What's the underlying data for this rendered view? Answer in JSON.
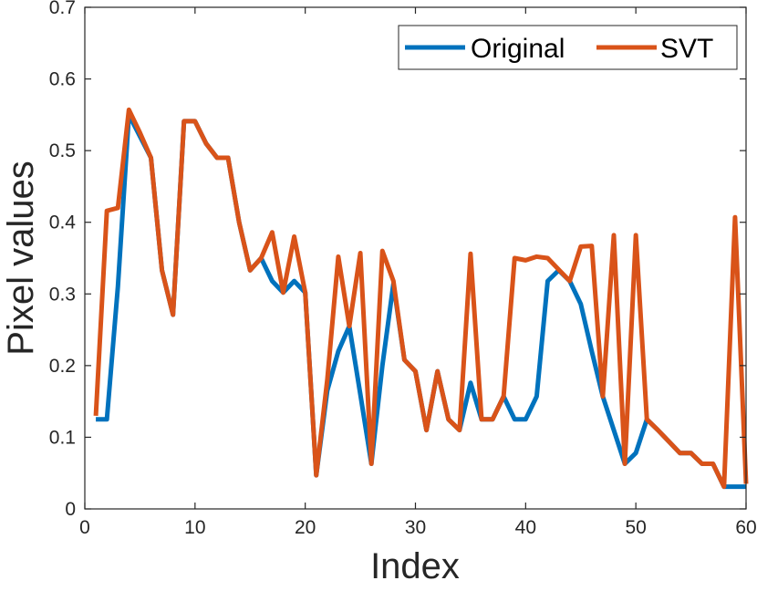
{
  "chart_data": {
    "type": "line",
    "xlabel": "Index",
    "ylabel": "Pixel values",
    "xlim": [
      0,
      60
    ],
    "ylim": [
      0,
      0.7
    ],
    "xticks": [
      "0",
      "10",
      "20",
      "30",
      "40",
      "50",
      "60"
    ],
    "yticks": [
      "0",
      "0.1",
      "0.2",
      "0.3",
      "0.4",
      "0.5",
      "0.6",
      "0.7"
    ],
    "grid": false,
    "legend_position": "top-right",
    "x": [
      1,
      2,
      3,
      4,
      5,
      6,
      7,
      8,
      9,
      10,
      11,
      12,
      13,
      14,
      15,
      16,
      17,
      18,
      19,
      20,
      21,
      22,
      23,
      24,
      25,
      26,
      27,
      28,
      29,
      30,
      31,
      32,
      33,
      34,
      35,
      36,
      37,
      38,
      39,
      40,
      41,
      42,
      43,
      44,
      45,
      46,
      47,
      48,
      49,
      50,
      51,
      52,
      53,
      54,
      55,
      56,
      57,
      58,
      59,
      60
    ],
    "series": [
      {
        "name": "Original",
        "color": "#0072BD",
        "values": [
          0.125,
          0.125,
          0.31,
          0.55,
          0.52,
          0.49,
          0.333,
          0.271,
          0.541,
          0.541,
          0.51,
          0.49,
          0.49,
          0.4,
          0.333,
          0.35,
          0.318,
          0.302,
          0.318,
          0.302,
          0.047,
          0.165,
          0.22,
          0.255,
          0.16,
          0.063,
          0.2,
          0.314,
          0.208,
          0.192,
          0.11,
          0.192,
          0.125,
          0.11,
          0.176,
          0.125,
          0.125,
          0.157,
          0.125,
          0.125,
          0.157,
          0.318,
          0.333,
          0.318,
          0.286,
          0.22,
          0.157,
          0.11,
          0.063,
          0.078,
          0.125,
          0.11,
          0.094,
          0.078,
          0.078,
          0.063,
          0.063,
          0.031,
          0.031,
          0.031
        ]
      },
      {
        "name": "SVT",
        "color": "#D95319",
        "values": [
          0.13,
          0.416,
          0.42,
          0.557,
          0.525,
          0.49,
          0.333,
          0.271,
          0.541,
          0.541,
          0.51,
          0.49,
          0.49,
          0.4,
          0.333,
          0.35,
          0.386,
          0.302,
          0.38,
          0.302,
          0.047,
          0.18,
          0.352,
          0.255,
          0.357,
          0.063,
          0.36,
          0.318,
          0.208,
          0.192,
          0.11,
          0.192,
          0.125,
          0.11,
          0.356,
          0.125,
          0.125,
          0.157,
          0.35,
          0.347,
          0.352,
          0.35,
          0.334,
          0.318,
          0.366,
          0.367,
          0.157,
          0.382,
          0.063,
          0.382,
          0.125,
          0.11,
          0.094,
          0.078,
          0.078,
          0.063,
          0.063,
          0.031,
          0.407,
          0.035
        ]
      }
    ]
  }
}
